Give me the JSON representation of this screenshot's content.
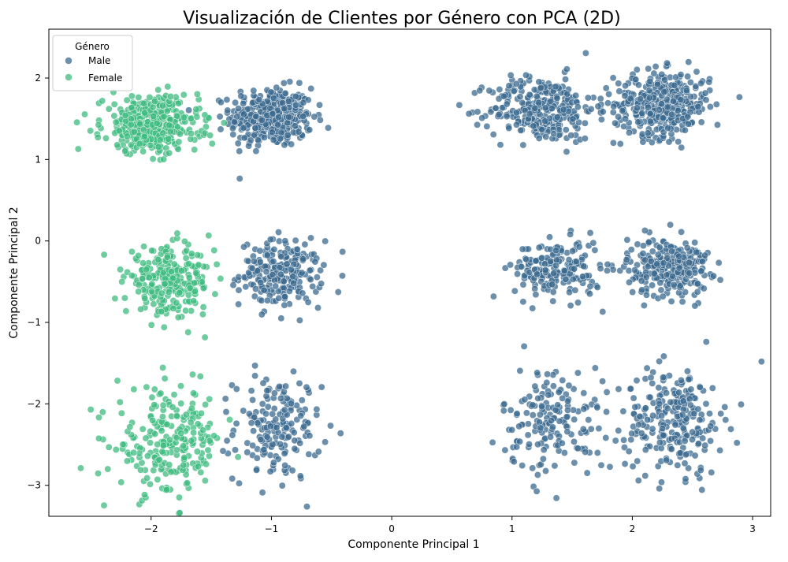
{
  "chart_data": {
    "type": "scatter",
    "title": "Visualización de Clientes por Género con PCA (2D)",
    "xlabel": "Componente Principal 1",
    "ylabel": "Componente Principal 2",
    "xlim": [
      -2.85,
      3.15
    ],
    "ylim": [
      -3.38,
      2.6
    ],
    "xticks": [
      -2,
      -1,
      0,
      1,
      2,
      3
    ],
    "yticks": [
      -3,
      -2,
      -1,
      0,
      1,
      2
    ],
    "xtick_labels": [
      "−2",
      "−1",
      "0",
      "1",
      "2",
      "3"
    ],
    "ytick_labels": [
      "−3",
      "−2",
      "−1",
      "0",
      "1",
      "2"
    ],
    "grid": false,
    "legend": {
      "title": "Género",
      "position": "top-left",
      "entries": [
        {
          "label": "Male",
          "color": "#3b6a8f"
        },
        {
          "label": "Female",
          "color": "#3dbb7f"
        }
      ]
    },
    "marker_alpha": 0.75,
    "series": [
      {
        "name": "Male",
        "color": "#3b6a8f",
        "clusters": [
          {
            "cx": -1.0,
            "cy": 1.52,
            "sx": 0.17,
            "sy": 0.18,
            "n": 380
          },
          {
            "cx": -0.92,
            "cy": -0.4,
            "sx": 0.17,
            "sy": 0.2,
            "n": 220
          },
          {
            "cx": -0.95,
            "cy": -2.3,
            "sx": 0.18,
            "sy": 0.32,
            "n": 180
          },
          {
            "cx": 1.25,
            "cy": 1.62,
            "sx": 0.22,
            "sy": 0.2,
            "n": 300
          },
          {
            "cx": 2.25,
            "cy": 1.68,
            "sx": 0.2,
            "sy": 0.2,
            "n": 380
          },
          {
            "cx": 1.38,
            "cy": -0.35,
            "sx": 0.18,
            "sy": 0.18,
            "n": 190
          },
          {
            "cx": 2.3,
            "cy": -0.32,
            "sx": 0.17,
            "sy": 0.18,
            "n": 260
          },
          {
            "cx": 1.35,
            "cy": -2.2,
            "sx": 0.22,
            "sy": 0.33,
            "n": 170
          },
          {
            "cx": 2.35,
            "cy": -2.2,
            "sx": 0.2,
            "sy": 0.33,
            "n": 240
          }
        ]
      },
      {
        "name": "Female",
        "color": "#3dbb7f",
        "clusters": [
          {
            "cx": -2.0,
            "cy": 1.42,
            "sx": 0.2,
            "sy": 0.17,
            "n": 420
          },
          {
            "cx": -1.85,
            "cy": -0.5,
            "sx": 0.18,
            "sy": 0.2,
            "n": 260
          },
          {
            "cx": -1.85,
            "cy": -2.48,
            "sx": 0.22,
            "sy": 0.33,
            "n": 230
          }
        ]
      }
    ]
  }
}
